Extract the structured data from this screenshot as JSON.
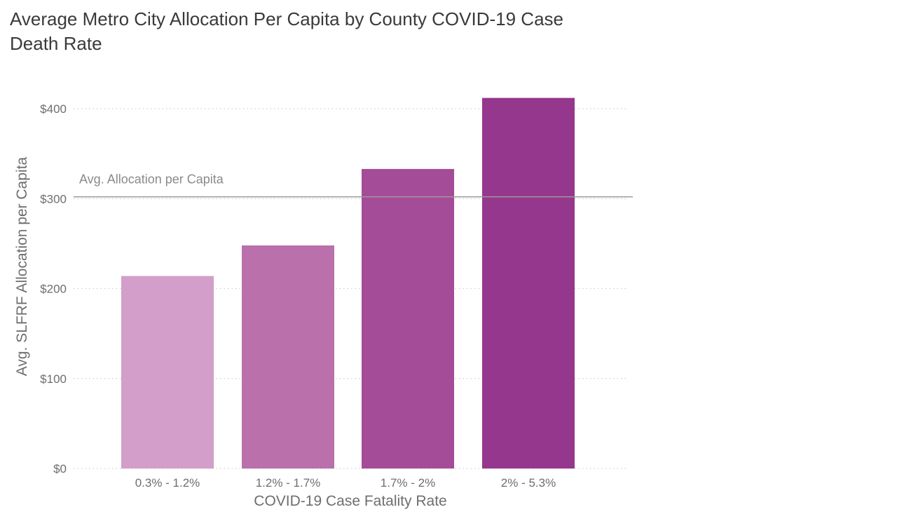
{
  "chart_data": {
    "type": "bar",
    "title": "Average Metro City Allocation Per Capita by County COVID-19 Case Death Rate",
    "xlabel": "COVID-19 Case Fatality Rate",
    "ylabel": "Avg. SLFRF Allocation per Capita",
    "categories": [
      "0.3% - 1.2%",
      "1.2% - 1.7%",
      "1.7% - 2%",
      "2% - 5.3%"
    ],
    "values": [
      214,
      248,
      333,
      412
    ],
    "bar_colors": [
      "#d39ec9",
      "#b970ab",
      "#a54c99",
      "#95378d"
    ],
    "ylim": [
      0,
      400
    ],
    "yticks": [
      0,
      100,
      200,
      300,
      400
    ],
    "ytick_labels": [
      "$0",
      "$100",
      "$200",
      "$300",
      "$400"
    ],
    "grid": "horizontal-dotted",
    "reference_line": {
      "value": 302,
      "label": "Avg. Allocation per Capita",
      "color": "#9a9a9a"
    }
  }
}
